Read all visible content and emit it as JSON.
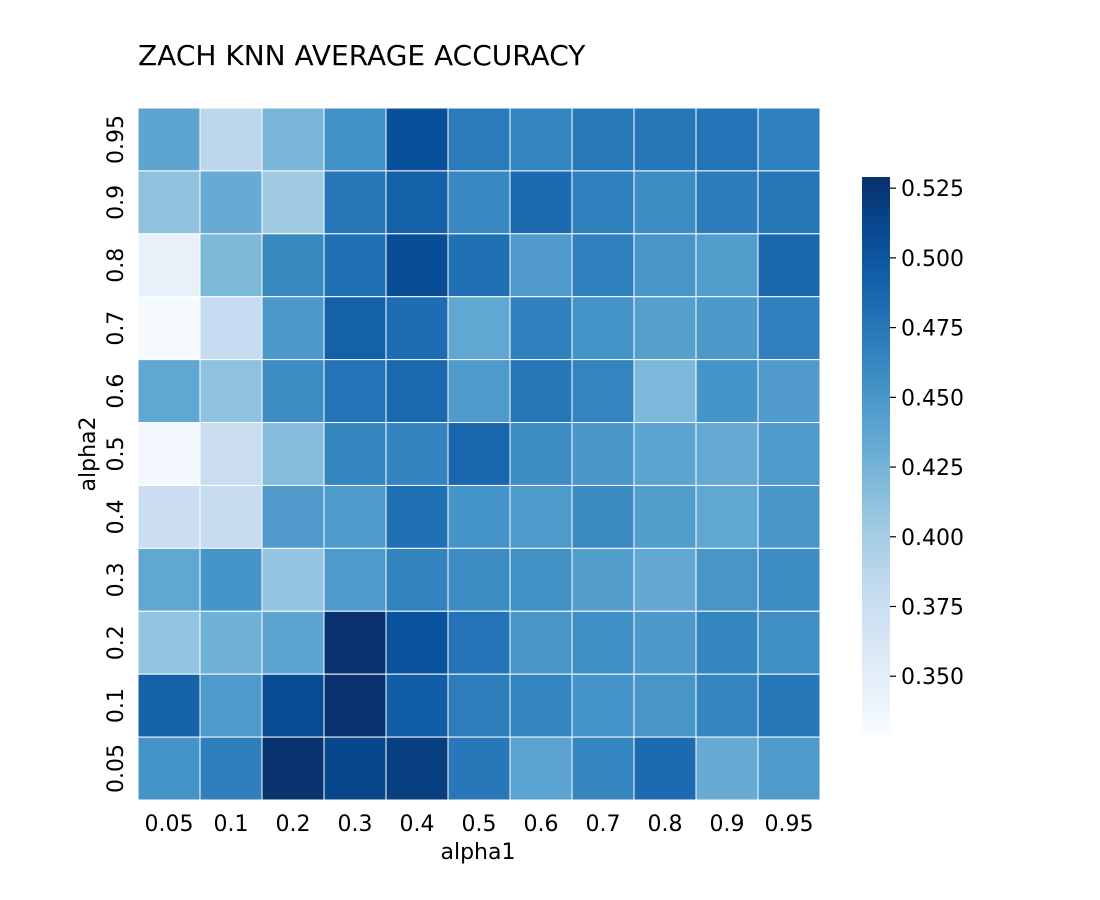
{
  "chart_data": {
    "type": "heatmap",
    "title": "ZACH KNN AVERAGE ACCURACY",
    "xlabel": "alpha1",
    "ylabel": "alpha2",
    "x_categories": [
      "0.05",
      "0.1",
      "0.2",
      "0.3",
      "0.4",
      "0.5",
      "0.6",
      "0.7",
      "0.8",
      "0.9",
      "0.95"
    ],
    "y_categories": [
      "0.95",
      "0.9",
      "0.8",
      "0.7",
      "0.6",
      "0.5",
      "0.4",
      "0.3",
      "0.2",
      "0.1",
      "0.05"
    ],
    "values": [
      [
        0.438,
        0.386,
        0.422,
        0.455,
        0.505,
        0.472,
        0.465,
        0.473,
        0.475,
        0.478,
        0.468
      ],
      [
        0.412,
        0.432,
        0.403,
        0.474,
        0.492,
        0.462,
        0.484,
        0.468,
        0.458,
        0.471,
        0.476
      ],
      [
        0.345,
        0.42,
        0.461,
        0.48,
        0.507,
        0.48,
        0.446,
        0.468,
        0.451,
        0.445,
        0.487
      ],
      [
        0.332,
        0.38,
        0.448,
        0.492,
        0.482,
        0.436,
        0.468,
        0.453,
        0.442,
        0.448,
        0.468
      ],
      [
        0.436,
        0.412,
        0.458,
        0.478,
        0.486,
        0.447,
        0.475,
        0.465,
        0.421,
        0.452,
        0.446
      ],
      [
        0.334,
        0.376,
        0.416,
        0.464,
        0.466,
        0.488,
        0.458,
        0.45,
        0.439,
        0.434,
        0.447
      ],
      [
        0.375,
        0.378,
        0.446,
        0.447,
        0.48,
        0.452,
        0.447,
        0.46,
        0.445,
        0.436,
        0.45
      ],
      [
        0.436,
        0.452,
        0.41,
        0.447,
        0.466,
        0.458,
        0.454,
        0.444,
        0.435,
        0.451,
        0.458
      ],
      [
        0.41,
        0.427,
        0.438,
        0.528,
        0.503,
        0.478,
        0.451,
        0.456,
        0.448,
        0.464,
        0.456
      ],
      [
        0.491,
        0.447,
        0.508,
        0.528,
        0.494,
        0.47,
        0.465,
        0.452,
        0.451,
        0.464,
        0.474
      ],
      [
        0.453,
        0.469,
        0.527,
        0.512,
        0.518,
        0.474,
        0.439,
        0.464,
        0.484,
        0.432,
        0.447
      ]
    ],
    "colorbar": {
      "min": 0.33,
      "max": 0.529,
      "ticks": [
        0.35,
        0.375,
        0.4,
        0.425,
        0.45,
        0.475,
        0.5,
        0.525
      ],
      "tick_labels": [
        "0.350",
        "0.375",
        "0.400",
        "0.425",
        "0.450",
        "0.475",
        "0.500",
        "0.525"
      ]
    },
    "colormap": "Blues",
    "cell_border_color": "#ffffff",
    "grid": false
  }
}
